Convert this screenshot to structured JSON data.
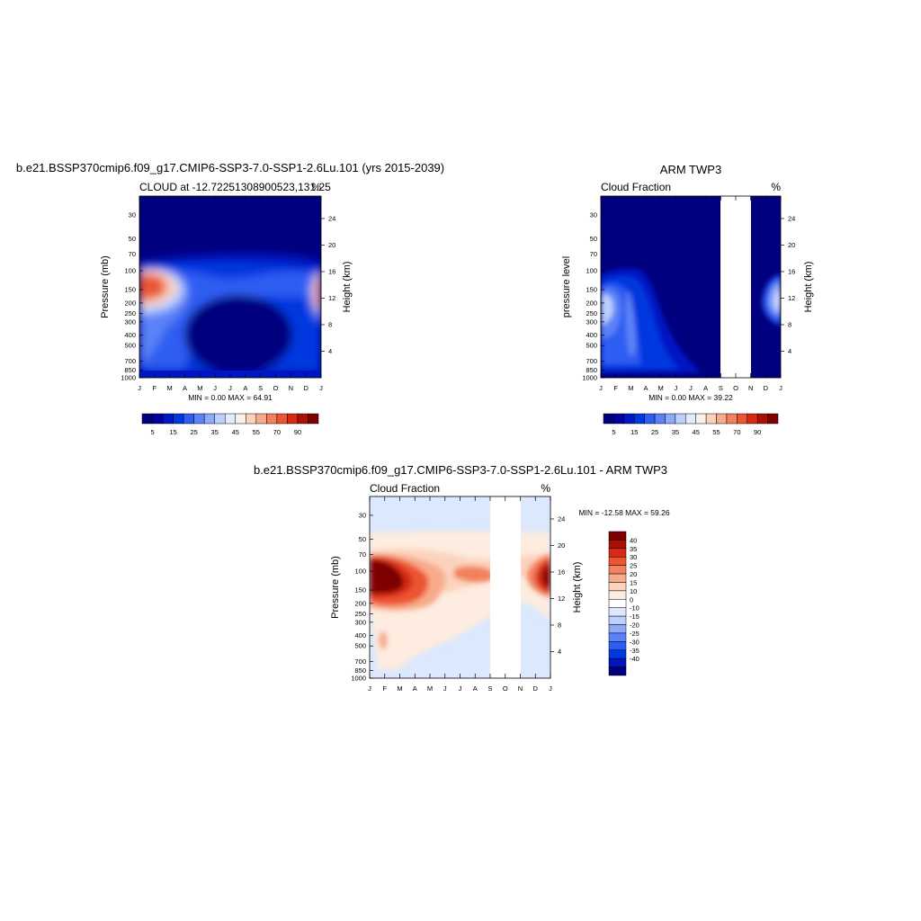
{
  "colors": {
    "seq": [
      "#00007f",
      "#0000a0",
      "#0016c4",
      "#0038e0",
      "#2e5df2",
      "#5c82f7",
      "#8daaf8",
      "#bcd0fb",
      "#e3ecfe",
      "#fdf0e6",
      "#fbd3bd",
      "#f8ab8b",
      "#f3815b",
      "#ec5532",
      "#d52a13",
      "#ab1006",
      "#7f0000"
    ],
    "diff": [
      "#00007f",
      "#0016c4",
      "#0038e0",
      "#2e5df2",
      "#5c82f7",
      "#8daaf8",
      "#bcd0fb",
      "#dbe8fd",
      "#ffffff",
      "#fdecdf",
      "#fbd3bd",
      "#f8ab8b",
      "#f3815b",
      "#ec5532",
      "#d52a13",
      "#ab1006",
      "#7f0000"
    ]
  },
  "chart_data": [
    {
      "type": "heatmap",
      "title": "b.e21.BSSP370cmip6.f09_g17.CMIP6-SSP3-7.0-SSP1-2.6Lu.101 (yrs 2015-2039)",
      "subtitle_left": "CLOUD at -12.72251308900523,131.25",
      "subtitle_right": "%",
      "ylabel": "Pressure (mb)",
      "ylabel_right": "Height (km)",
      "x_ticks": [
        "J",
        "F",
        "M",
        "A",
        "M",
        "J",
        "J",
        "A",
        "S",
        "O",
        "N",
        "D",
        "J"
      ],
      "y_ticks": [
        "30",
        "50",
        "70",
        "100",
        "150",
        "200",
        "250",
        "300",
        "400",
        "500",
        "700",
        "850",
        "1000"
      ],
      "y_ticks_right": [
        "4",
        "8",
        "12",
        "16",
        "20",
        "24"
      ],
      "stats": "MIN =   0.00 MAX =  64.91",
      "colorbar_labels": [
        "5",
        "15",
        "25",
        "35",
        "45",
        "55",
        "70",
        "90"
      ],
      "min": 0.0,
      "max": 64.91
    },
    {
      "type": "heatmap",
      "title": "ARM TWP3",
      "subtitle_left": "Cloud Fraction",
      "subtitle_right": "%",
      "ylabel": "pressure level",
      "ylabel_right": "Height (km)",
      "x_ticks": [
        "J",
        "F",
        "M",
        "A",
        "M",
        "J",
        "J",
        "A",
        "S",
        "O",
        "N",
        "D",
        "J"
      ],
      "y_ticks": [
        "30",
        "50",
        "70",
        "100",
        "150",
        "200",
        "250",
        "300",
        "400",
        "500",
        "700",
        "850",
        "1000"
      ],
      "y_ticks_right": [
        "4",
        "8",
        "12",
        "16",
        "20",
        "24"
      ],
      "stats": "MIN =   0.00 MAX =  39.22",
      "colorbar_labels": [
        "5",
        "15",
        "25",
        "35",
        "45",
        "55",
        "70",
        "90"
      ],
      "missing_months": [
        "S",
        "O"
      ],
      "min": 0.0,
      "max": 39.22
    },
    {
      "type": "heatmap",
      "title": "b.e21.BSSP370cmip6.f09_g17.CMIP6-SSP3-7.0-SSP1-2.6Lu.101 - ARM TWP3",
      "subtitle_left": "Cloud Fraction",
      "subtitle_right": "%",
      "ylabel": "Pressure (mb)",
      "ylabel_right": "Height (km)",
      "x_ticks": [
        "J",
        "F",
        "M",
        "A",
        "M",
        "J",
        "J",
        "A",
        "S",
        "O",
        "N",
        "D",
        "J"
      ],
      "y_ticks": [
        "30",
        "50",
        "70",
        "100",
        "150",
        "200",
        "250",
        "300",
        "400",
        "500",
        "700",
        "850",
        "1000"
      ],
      "y_ticks_right": [
        "4",
        "8",
        "12",
        "16",
        "20",
        "24"
      ],
      "stats": "MIN = -12.58 MAX =  59.26",
      "colorbar_labels": [
        "40",
        "35",
        "30",
        "25",
        "20",
        "15",
        "10",
        "0",
        "-10",
        "-15",
        "-20",
        "-25",
        "-30",
        "-35",
        "-40"
      ],
      "missing_months": [
        "S",
        "O"
      ],
      "min": -12.58,
      "max": 59.26
    }
  ]
}
